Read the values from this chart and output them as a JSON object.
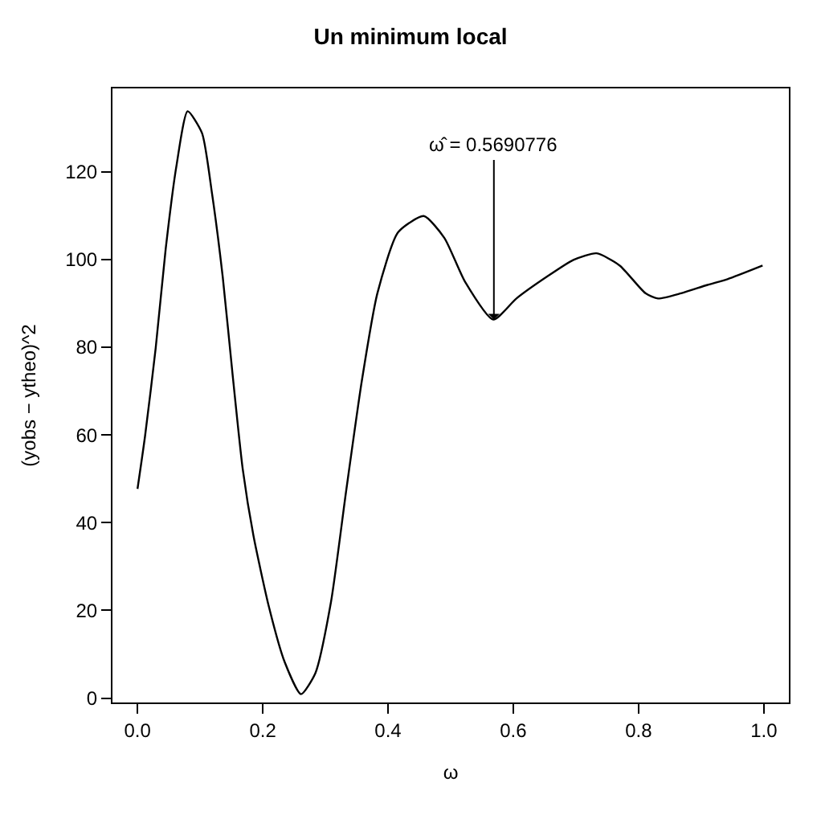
{
  "chart_data": {
    "type": "line",
    "title": "Un minimum local",
    "xlabel": "ω",
    "ylabel": "(yobs − ytheo)^2",
    "x": [
      0,
      0.012,
      0.029,
      0.045,
      0.062,
      0.08,
      0.103,
      0.119,
      0.136,
      0.152,
      0.168,
      0.185,
      0.21,
      0.235,
      0.261,
      0.284,
      0.309,
      0.333,
      0.358,
      0.383,
      0.416,
      0.457,
      0.49,
      0.523,
      0.568,
      0.605,
      0.654,
      0.696,
      0.733,
      0.77,
      0.811,
      0.831,
      0.868,
      0.91,
      0.942,
      0.998
    ],
    "series": [
      {
        "color": "#000000",
        "values": [
          47.7,
          59.7,
          79.8,
          102.4,
          121.2,
          133.8,
          128.8,
          115,
          96.1,
          73.5,
          52.2,
          37.1,
          20.7,
          8.2,
          0.9,
          5.7,
          22.0,
          47.1,
          72.2,
          92.3,
          106.2,
          109.9,
          104.9,
          94.9,
          86.3,
          91.1,
          96.1,
          99.9,
          101.4,
          98.6,
          92.3,
          91.1,
          92.3,
          94.2,
          95.5,
          98.6
        ]
      }
    ],
    "annotations": [
      {
        "text": "ω̂ = 0.5690776",
        "x": 0.569,
        "y": 86.3
      }
    ],
    "xlim": [
      -0.04,
      1.04
    ],
    "ylim": [
      -1,
      139
    ],
    "xticks": [
      {
        "value": 0,
        "label": "0.0"
      },
      0.2,
      0.4,
      0.6,
      0.8,
      {
        "value": 1,
        "label": "1.0"
      }
    ],
    "yticks": [
      0,
      20,
      40,
      60,
      80,
      100,
      120
    ],
    "marker": "none",
    "line_style": "solid"
  }
}
